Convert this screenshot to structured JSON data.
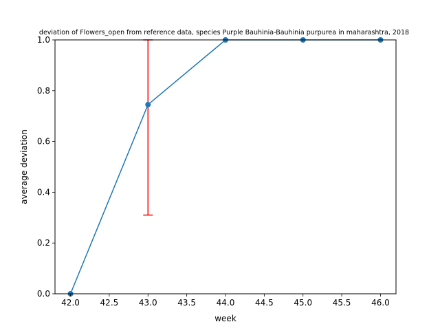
{
  "chart_data": {
    "type": "line",
    "title": "deviation of Flowers_open from reference data, species Purple Bauhinia-Bauhinia purpurea in maharashtra, 2018",
    "xlabel": "week",
    "ylabel": "average deviation",
    "xlim": [
      41.8,
      46.2
    ],
    "ylim": [
      0,
      1.0
    ],
    "xticks": [
      "42.0",
      "42.5",
      "43.0",
      "43.5",
      "44.0",
      "44.5",
      "45.0",
      "45.5",
      "46.0"
    ],
    "yticks": [
      "0.0",
      "0.2",
      "0.4",
      "0.6",
      "0.8",
      "1.0"
    ],
    "grid": false,
    "series": [
      {
        "x": [
          42,
          43,
          44,
          45,
          46
        ],
        "values": [
          0.0,
          0.745,
          1.0,
          1.0,
          1.0
        ],
        "error_low": [
          0.0,
          0.31,
          1.0,
          1.0,
          1.0
        ],
        "error_high": [
          0.0,
          1.0,
          1.0,
          1.0,
          1.0
        ]
      }
    ],
    "colors": {
      "line": "#1f77b4",
      "errorbar": "#ff0000"
    }
  }
}
